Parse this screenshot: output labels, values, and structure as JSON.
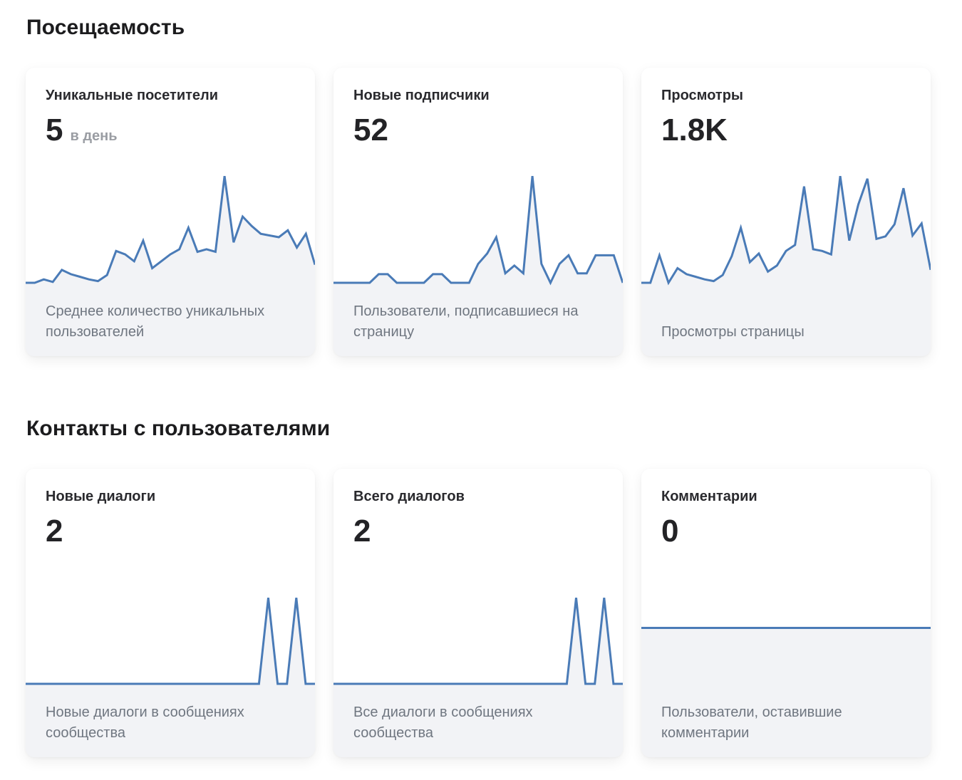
{
  "sections": [
    {
      "title": "Посещаемость"
    },
    {
      "title": "Контакты с пользователями"
    }
  ],
  "cards": [
    {
      "title": "Уникальные посетители",
      "value": "5",
      "unit": "в день",
      "description": "Среднее количество уникальных пользователей",
      "chart_data": {
        "type": "area",
        "color": "#4a7bb7",
        "ylim": [
          0,
          13
        ],
        "values": [
          0,
          0,
          0.4,
          0.1,
          1.5,
          1.0,
          0.7,
          0.4,
          0.2,
          0.9,
          3.7,
          3.3,
          2.5,
          4.9,
          1.7,
          2.5,
          3.3,
          3.9,
          6.4,
          3.6,
          3.9,
          3.6,
          12.4,
          4.7,
          7.7,
          6.6,
          5.7,
          5.5,
          5.3,
          6.1,
          4.1,
          5.7,
          2.1
        ]
      }
    },
    {
      "title": "Новые подписчики",
      "value": "52",
      "unit": "",
      "description": "Пользователи, подписавшиеся на страницу",
      "chart_data": {
        "type": "area",
        "color": "#4a7bb7",
        "ylim": [
          0,
          13
        ],
        "values": [
          0,
          0,
          0,
          0,
          0,
          1,
          1,
          0,
          0,
          0,
          0,
          1,
          1,
          0,
          0,
          0,
          2.2,
          3.4,
          5.3,
          1.1,
          2.0,
          1.1,
          12.4,
          2.2,
          0,
          2.2,
          3.2,
          1.1,
          1.1,
          3.2,
          3.2,
          3.2,
          0
        ]
      }
    },
    {
      "title": "Просмотры",
      "value": "1.8K",
      "unit": "",
      "description": "Просмотры страницы",
      "chart_data": {
        "type": "area",
        "color": "#4a7bb7",
        "ylim": [
          0,
          13
        ],
        "values": [
          0,
          0,
          3.2,
          0,
          1.7,
          1.0,
          0.7,
          0.4,
          0.2,
          0.9,
          3.1,
          6.4,
          2.4,
          3.4,
          1.3,
          2.0,
          3.7,
          4.4,
          11.2,
          3.9,
          3.7,
          3.3,
          12.4,
          4.9,
          9.1,
          12.1,
          5.1,
          5.4,
          6.8,
          11.0,
          5.5,
          6.9,
          1.5
        ]
      }
    },
    {
      "title": "Новые диалоги",
      "value": "2",
      "unit": "",
      "description": "Новые диалоги в сообщениях сообщества",
      "chart_data": {
        "type": "area",
        "color": "#4a7bb7",
        "ylim": [
          0,
          1.3
        ],
        "values": [
          0,
          0,
          0,
          0,
          0,
          0,
          0,
          0,
          0,
          0,
          0,
          0,
          0,
          0,
          0,
          0,
          0,
          0,
          0,
          0,
          0,
          0,
          0,
          0,
          0,
          0,
          1,
          0,
          0,
          1,
          0,
          0
        ]
      }
    },
    {
      "title": "Всего диалогов",
      "value": "2",
      "unit": "",
      "description": "Все диалоги в сообщениях сообщества",
      "chart_data": {
        "type": "area",
        "color": "#4a7bb7",
        "ylim": [
          0,
          1.3
        ],
        "values": [
          0,
          0,
          0,
          0,
          0,
          0,
          0,
          0,
          0,
          0,
          0,
          0,
          0,
          0,
          0,
          0,
          0,
          0,
          0,
          0,
          0,
          0,
          0,
          0,
          0,
          0,
          1,
          0,
          0,
          1,
          0,
          0
        ]
      }
    },
    {
      "title": "Комментарии",
      "value": "0",
      "unit": "",
      "description": "Пользователи, оставившие комментарии",
      "chart_data": {
        "type": "area",
        "color": "#4a7bb7",
        "ylim": [
          -1,
          1
        ],
        "values": [
          0,
          0,
          0,
          0,
          0,
          0,
          0,
          0,
          0,
          0,
          0,
          0,
          0,
          0,
          0,
          0,
          0,
          0,
          0,
          0,
          0,
          0,
          0,
          0,
          0,
          0,
          0,
          0,
          0,
          0,
          0,
          0
        ]
      }
    }
  ]
}
